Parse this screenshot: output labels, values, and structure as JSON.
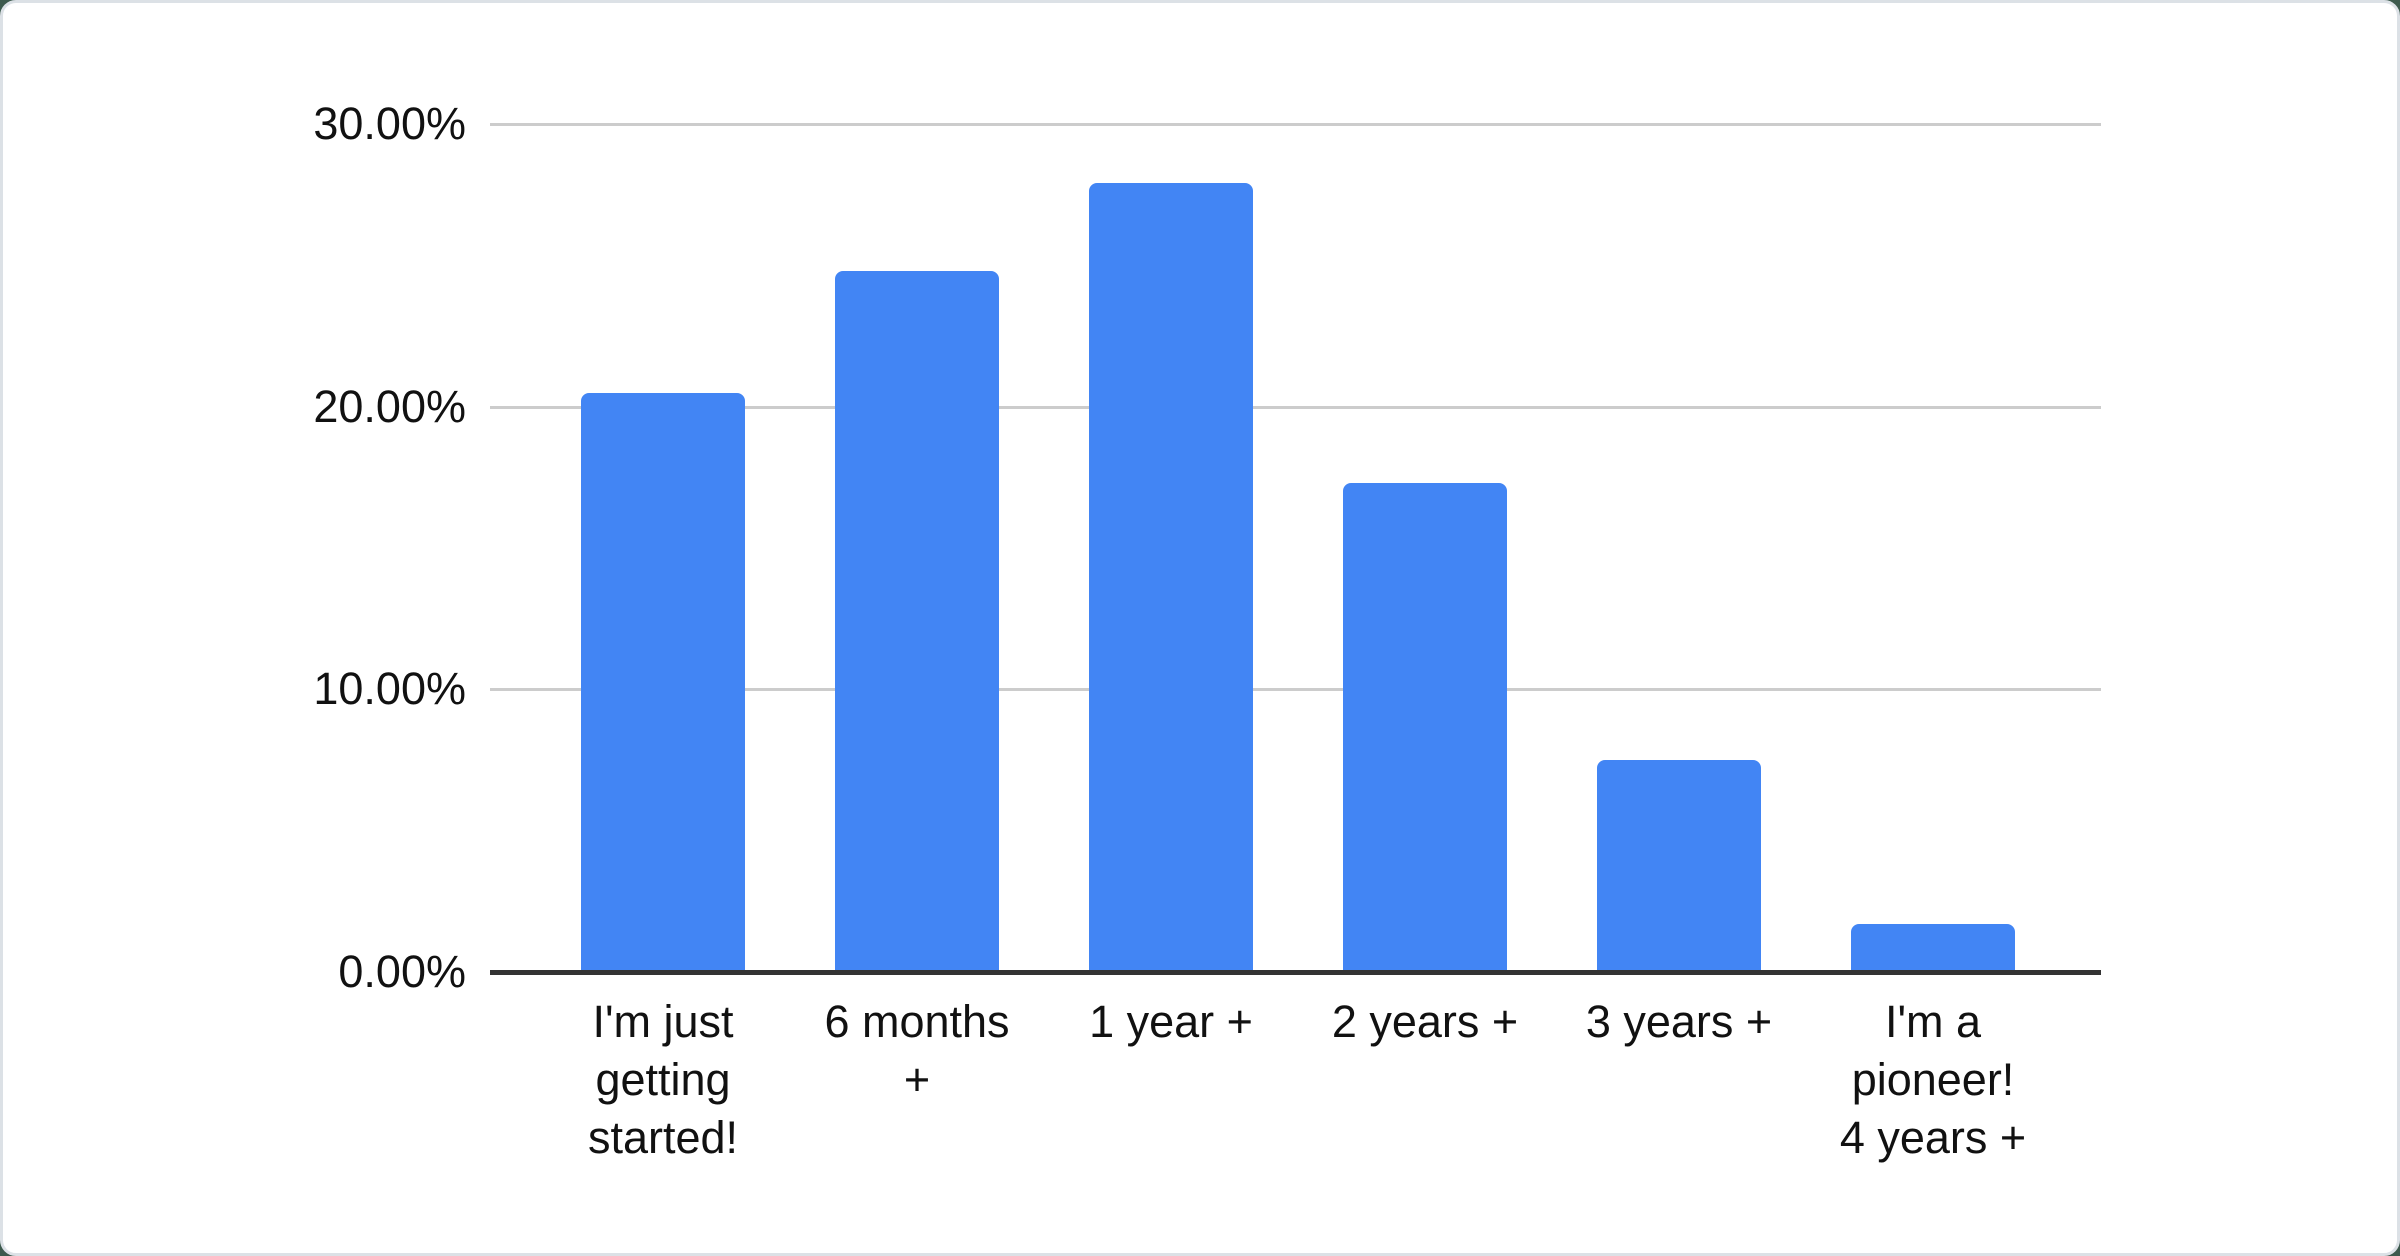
{
  "chart_data": {
    "type": "bar",
    "title": "",
    "xlabel": "",
    "ylabel": "",
    "categories": [
      "I'm just getting started!",
      "6 months +",
      "1 year +",
      "2 years +",
      "3 years +",
      "I'm a pioneer! 4 years +"
    ],
    "category_display": [
      "I'm just\ngetting\nstarted!",
      "6 months\n+",
      "1 year +",
      "2 years +",
      "3 years +",
      "I'm a\npioneer!\n4 years +"
    ],
    "values": [
      20.5,
      24.8,
      27.9,
      17.3,
      7.5,
      1.7
    ],
    "value_unit": "%",
    "ylim": [
      0,
      30
    ],
    "ytick_labels_bottom_up": [
      "0.00%",
      "10.00%",
      "20.00%",
      "30.00%"
    ],
    "grid": true,
    "legend_position": "none"
  },
  "colors": {
    "bar": "#4285F4",
    "gridline": "#cccccc",
    "axis_line": "#333333",
    "tick_label": "#111111",
    "card_background": "#ffffff",
    "card_border": "#dce1e6",
    "page_background": "#3d5a4d"
  }
}
